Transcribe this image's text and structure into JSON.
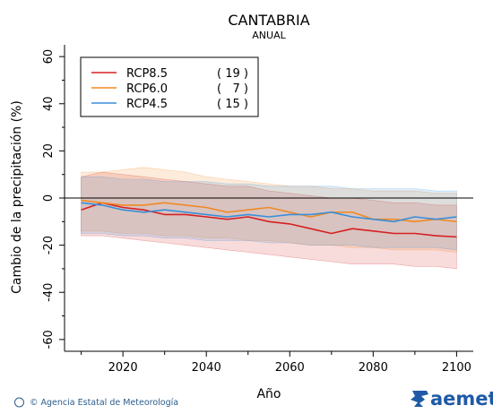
{
  "chart_data": {
    "type": "line",
    "title": "CANTABRIA",
    "subtitle": "ANUAL",
    "xlabel": "Año",
    "ylabel": "Cambio de la precipitación (%)",
    "xlim": [
      2006,
      2104
    ],
    "ylim": [
      -65,
      65
    ],
    "xticks": [
      2020,
      2040,
      2060,
      2080,
      2100
    ],
    "yticks": [
      -60,
      -40,
      -20,
      0,
      20,
      40,
      60
    ],
    "zero_line": true,
    "legend_position": "top-left",
    "x": [
      2010,
      2015,
      2020,
      2025,
      2030,
      2035,
      2040,
      2045,
      2050,
      2055,
      2060,
      2065,
      2070,
      2075,
      2080,
      2085,
      2090,
      2095,
      2100
    ],
    "series": [
      {
        "name": "RCP8.5",
        "count": "( 19 )",
        "color": "#d62020",
        "values": [
          -5,
          -2,
          -4,
          -5,
          -7,
          -7,
          -8,
          -9,
          -8,
          -10,
          -11,
          -13,
          -15,
          -13,
          -14,
          -15,
          -15,
          -16,
          -16.5
        ],
        "upper": [
          9,
          11,
          10,
          9,
          8,
          7,
          6,
          5,
          5,
          3,
          2,
          1,
          0,
          0,
          -1,
          -2,
          -2,
          -3,
          -3
        ],
        "lower": [
          -16,
          -16,
          -17,
          -18,
          -19,
          -20,
          -21,
          -22,
          -23,
          -24,
          -25,
          -26,
          -27,
          -28,
          -28,
          -28,
          -29,
          -29,
          -30
        ]
      },
      {
        "name": "RCP6.0",
        "count": "(   7 )",
        "color": "#f08a24",
        "values": [
          -1,
          -2,
          -3,
          -3,
          -2,
          -3,
          -4,
          -6,
          -5,
          -4,
          -6,
          -8,
          -6,
          -6,
          -9,
          -9,
          -10,
          -9,
          -10
        ],
        "upper": [
          11,
          11,
          12,
          13,
          12,
          11,
          9,
          8,
          7,
          6,
          5,
          5,
          4,
          4,
          3,
          3,
          3,
          2,
          2
        ],
        "lower": [
          -14,
          -14,
          -15,
          -15,
          -16,
          -16,
          -17,
          -17,
          -18,
          -18,
          -19,
          -20,
          -20,
          -21,
          -21,
          -22,
          -22,
          -22,
          -23
        ]
      },
      {
        "name": "RCP4.5",
        "count": "( 15 )",
        "color": "#3a8fd9",
        "values": [
          -2,
          -3,
          -5,
          -6,
          -5,
          -6,
          -7,
          -8,
          -7,
          -8,
          -7,
          -7,
          -6,
          -8,
          -9,
          -10,
          -8,
          -9,
          -8
        ],
        "upper": [
          9,
          9,
          8,
          8,
          7,
          7,
          7,
          6,
          6,
          5,
          5,
          5,
          5,
          4,
          4,
          4,
          4,
          3,
          3
        ],
        "lower": [
          -15,
          -15,
          -16,
          -16,
          -17,
          -17,
          -18,
          -18,
          -18,
          -19,
          -19,
          -20,
          -20,
          -20,
          -21,
          -21,
          -21,
          -21,
          -22
        ]
      }
    ]
  },
  "footer": {
    "credit": "© Agencia Estatal de Meteorología",
    "logo_text": "aemet"
  }
}
